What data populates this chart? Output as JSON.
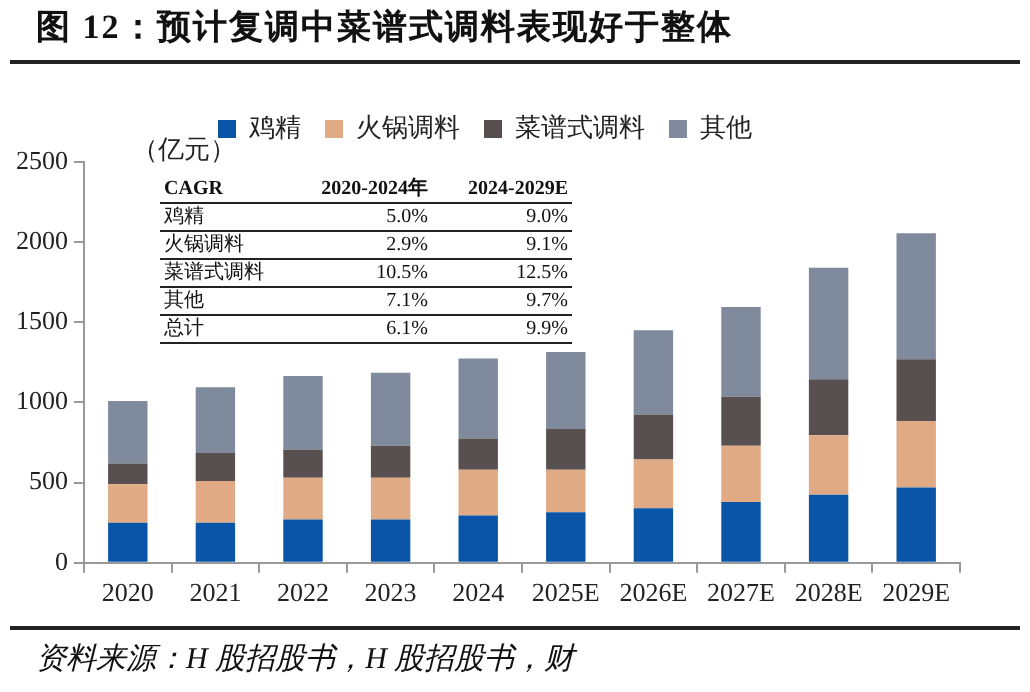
{
  "chart_data": {
    "type": "bar",
    "title": "图 12：预计复调中菜谱式调料表现好于整体",
    "ylabel": "（亿元）",
    "categories": [
      "2020",
      "2021",
      "2022",
      "2023",
      "2024",
      "2025E",
      "2026E",
      "2027E",
      "2028E",
      "2029E"
    ],
    "stacked": true,
    "legend": "top",
    "grid": false,
    "ylim": [
      0,
      2500
    ],
    "yticks": [
      0,
      500,
      1000,
      1500,
      2000,
      2500
    ],
    "series": [
      {
        "name": "鸡精",
        "color": "#0b55a8",
        "values": [
          250,
          250,
          270,
          270,
          295,
          315,
          340,
          380,
          425,
          470
        ]
      },
      {
        "name": "火锅调料",
        "color": "#dfaa84",
        "values": [
          240,
          260,
          260,
          260,
          285,
          265,
          305,
          350,
          370,
          415
        ]
      },
      {
        "name": "菜谱式调料",
        "color": "#585050",
        "values": [
          130,
          175,
          175,
          200,
          195,
          255,
          280,
          305,
          350,
          385
        ]
      },
      {
        "name": "其他",
        "color": "#7f8b9c",
        "values": [
          390,
          410,
          460,
          455,
          500,
          480,
          525,
          560,
          695,
          785
        ]
      }
    ],
    "annotations": [
      "CAGR",
      "2020-2024年",
      "2024-2029E",
      "鸡精",
      "5.0%",
      "9.0%",
      "火锅调料",
      "2.9%",
      "9.1%",
      "菜谱式调料",
      "10.5%",
      "12.5%",
      "其他",
      "7.1%",
      "9.7%",
      "总计",
      "6.1%",
      "9.9%",
      "资料来源：H 股招股书，H 股招股书，财"
    ]
  }
}
